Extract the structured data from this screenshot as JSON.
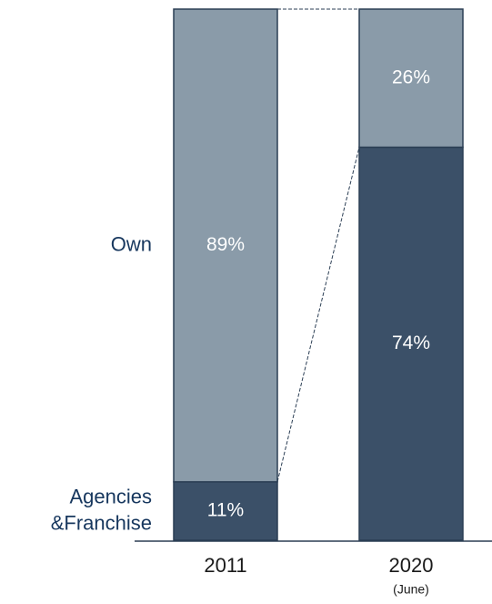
{
  "chart_data": {
    "type": "stacked_bar",
    "categories": [
      "2011",
      "2020"
    ],
    "category_notes": [
      null,
      "(June)"
    ],
    "series": [
      {
        "name": "Agencies &Franchise",
        "color": "#3b5068",
        "values": [
          11,
          74
        ],
        "value_labels": [
          "11%",
          "74%"
        ]
      },
      {
        "name": "Own",
        "color": "#8a9ba9",
        "values": [
          89,
          26
        ],
        "value_labels": [
          "89%",
          "26%"
        ]
      }
    ],
    "ylim": [
      0,
      100
    ]
  }
}
